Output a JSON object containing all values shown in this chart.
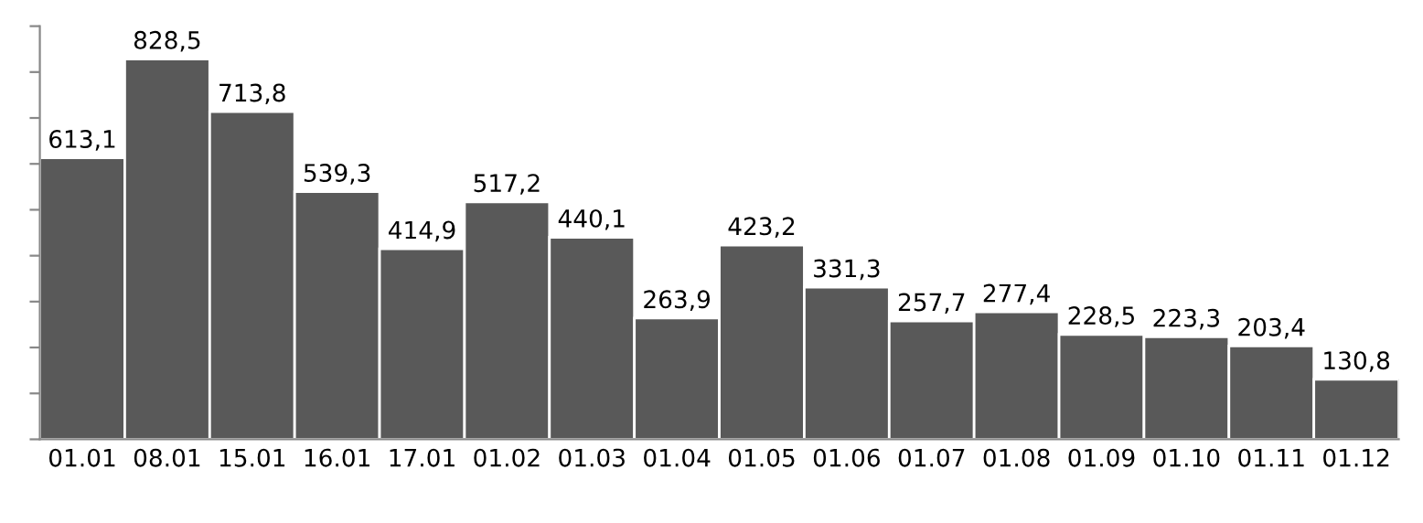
{
  "chart_data": {
    "type": "bar",
    "categories": [
      "01.01",
      "08.01",
      "15.01",
      "16.01",
      "17.01",
      "01.02",
      "01.03",
      "01.04",
      "01.05",
      "01.06",
      "01.07",
      "01.08",
      "01.09",
      "01.10",
      "01.11",
      "01.12"
    ],
    "values": [
      613.1,
      828.5,
      713.8,
      539.3,
      414.9,
      517.2,
      440.1,
      263.9,
      423.2,
      331.3,
      257.7,
      277.4,
      228.5,
      223.3,
      203.4,
      130.8
    ],
    "value_labels": [
      "613,1",
      "828,5",
      "713,8",
      "539,3",
      "414,9",
      "517,2",
      "440,1",
      "263,9",
      "423,2",
      "331,3",
      "257,7",
      "277,4",
      "228,5",
      "223,3",
      "203,4",
      "130,8"
    ],
    "color": "#595959",
    "ylim": [
      0,
      900
    ],
    "yticks": [
      {
        "value": 0,
        "label": null
      },
      {
        "value": 100,
        "label": null
      },
      {
        "value": 200,
        "label": null
      },
      {
        "value": 300,
        "label": null
      },
      {
        "value": 400,
        "label": null
      },
      {
        "value": 500,
        "label": null
      },
      {
        "value": 600,
        "label": null
      },
      {
        "value": 700,
        "label": null
      },
      {
        "value": 800,
        "label": null
      },
      {
        "value": 900,
        "label": null
      }
    ],
    "grid": false,
    "legend": false
  }
}
